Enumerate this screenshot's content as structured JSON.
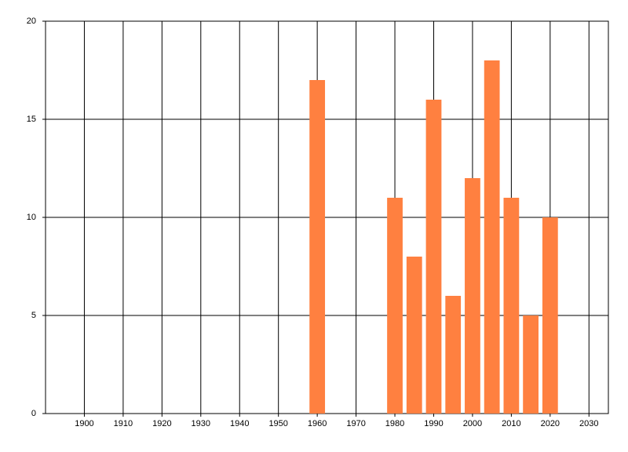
{
  "chart_data": {
    "type": "bar",
    "x": [
      1960,
      1980,
      1985,
      1990,
      1995,
      2000,
      2005,
      2010,
      2015,
      2020
    ],
    "values": [
      17,
      11,
      8,
      16,
      6,
      12,
      18,
      11,
      5,
      10
    ],
    "color": "#ff8040",
    "xlim": [
      1890,
      2035
    ],
    "xticks": [
      1900,
      1910,
      1920,
      1930,
      1940,
      1950,
      1960,
      1970,
      1980,
      1990,
      2000,
      2010,
      2020,
      2030
    ],
    "ylim": [
      0,
      20
    ],
    "yticks": [
      0,
      5,
      10,
      15,
      20
    ],
    "grid": true
  }
}
